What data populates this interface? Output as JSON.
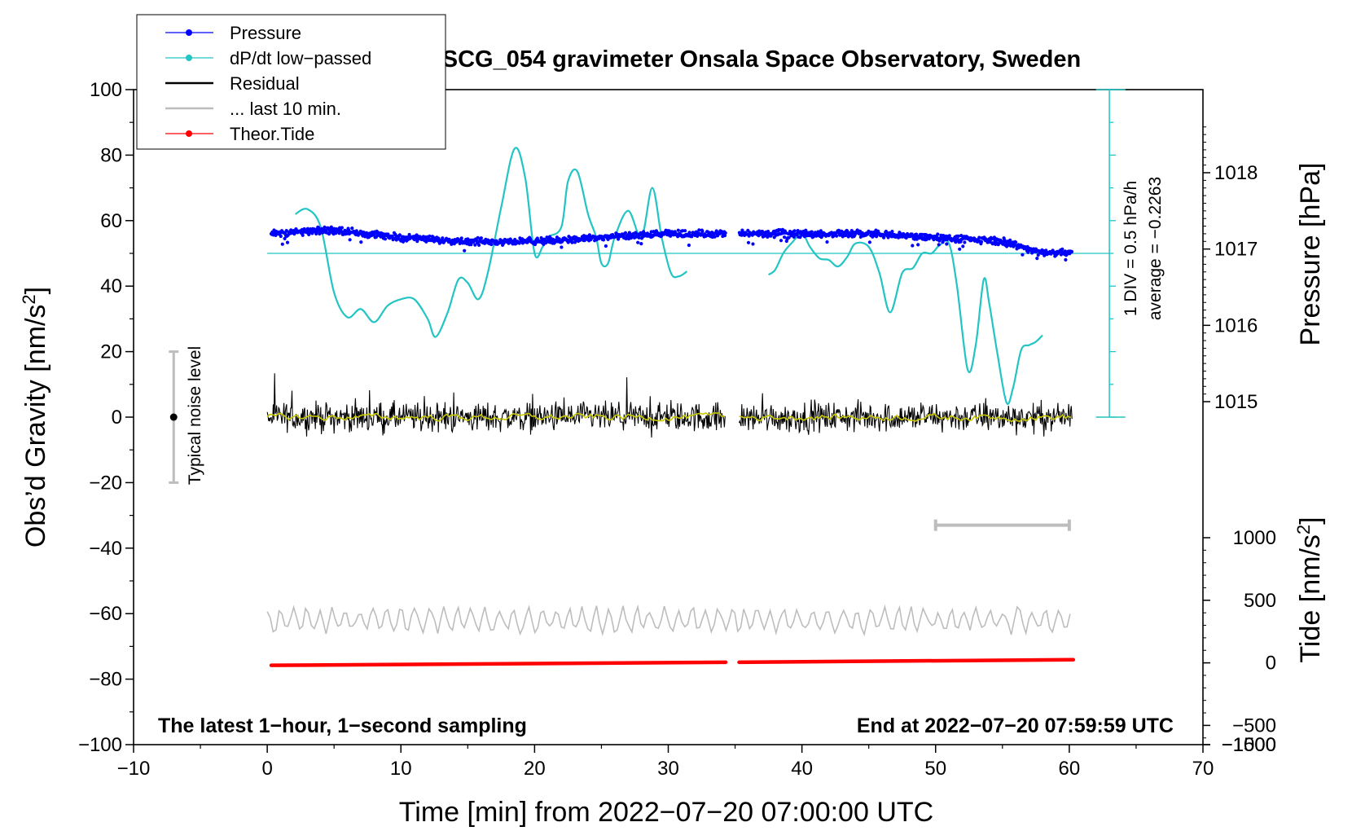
{
  "chart_data": {
    "type": "line",
    "title": "SCG_054 gravimeter Onsala Space Observatory, Sweden",
    "xlabel": "Time [min] from 2022−07−20 07:00:00 UTC",
    "ylabel_left": "Obs'd Gravity [nm/s²]",
    "ylabel_pressure": "Pressure [hPa]",
    "ylabel_tide": "Tide [nm/s²]",
    "xlim": [
      -10,
      70
    ],
    "ylim": [
      -100,
      100
    ],
    "x_ticks": [
      -10,
      0,
      10,
      20,
      30,
      40,
      50,
      60,
      70
    ],
    "x_tick_labels": [
      "−10",
      "0",
      "10",
      "20",
      "30",
      "40",
      "50",
      "60",
      "70"
    ],
    "y_ticks": [
      -100,
      -80,
      -60,
      -40,
      -20,
      0,
      20,
      40,
      60,
      80,
      100
    ],
    "y_tick_labels": [
      "−100",
      "−80",
      "−60",
      "−40",
      "−20",
      "0",
      "20",
      "40",
      "60",
      "80",
      "100"
    ],
    "pressure_ticks": [
      1015,
      1016,
      1017,
      1018
    ],
    "pressure_tick_labels": [
      "1015",
      "1016",
      "1017",
      "1018"
    ],
    "tide_ticks": [
      -1500,
      -1000,
      -500,
      0,
      500,
      1000
    ],
    "tide_tick_labels": [
      "−1500",
      "−1000",
      "−500",
      "0",
      "500",
      "1000"
    ],
    "legend": {
      "position": "top-left",
      "entries": [
        {
          "label": "Pressure",
          "color": "#0000ff",
          "style": "dot-line"
        },
        {
          "label": "dP/dt low−passed",
          "color": "#22c4c4",
          "style": "dot-line"
        },
        {
          "label": "Residual",
          "color": "#000000",
          "style": "line"
        },
        {
          "label": "... last 10 min.",
          "color": "#bdbdbd",
          "style": "line"
        },
        {
          "label": "Theor.Tide",
          "color": "#ff0000",
          "style": "dot-line"
        }
      ]
    },
    "series": [
      {
        "name": "Pressure",
        "axis": "pressure",
        "color": "#0000ff",
        "x": [
          0.3,
          5,
          10,
          15,
          20,
          25,
          30,
          34.3,
          35.3,
          40,
          45,
          50,
          55,
          57,
          58,
          60.2
        ],
        "values": [
          1017.2,
          1017.25,
          1017.15,
          1017.1,
          1017.1,
          1017.15,
          1017.2,
          1017.2,
          1017.2,
          1017.2,
          1017.2,
          1017.15,
          1017.1,
          1017.0,
          1016.95,
          1016.95
        ]
      },
      {
        "name": "dP/dt low-passed",
        "axis": "gravity",
        "color": "#22c4c4",
        "segments": [
          {
            "x": [
              2.1,
              3,
              4,
              5,
              6,
              7,
              8,
              9,
              10,
              11,
              12,
              12.6,
              13.5,
              14.3,
              15,
              15.8,
              16.5,
              17.5,
              18.5,
              19.3,
              20,
              20.6,
              21,
              22,
              22.5,
              23.2,
              24,
              24.6,
              25,
              25.5,
              26,
              27,
              28,
              28.8,
              29.5,
              30.2,
              30.8,
              31.4
            ],
            "values": [
              62,
              63.5,
              58,
              38,
              30.5,
              33,
              29,
              34,
              36,
              36,
              30,
              24.5,
              32,
              42,
              41,
              36,
              44,
              64,
              82,
              73,
              50,
              52,
              55,
              58,
              72,
              75,
              62,
              55,
              47,
              47,
              55,
              63,
              55,
              70,
              55,
              44,
              43,
              44.5
            ]
          },
          {
            "x": [
              37.5,
              38,
              38.6,
              39.2,
              40,
              40.6,
              41.3,
              42,
              42.7,
              43.4,
              44,
              45,
              45.8,
              46.6,
              47.5,
              48.3,
              49,
              49.7,
              50.3,
              51,
              51.6,
              52.4,
              53,
              53.6,
              54,
              54.6,
              55.3,
              55.8,
              56.4,
              57,
              57.5,
              58
            ],
            "values": [
              43.5,
              45,
              50,
              53,
              56,
              52,
              48.5,
              48,
              46,
              49,
              53,
              52,
              44,
              32,
              44,
              45.5,
              50,
              50,
              52.5,
              53,
              40,
              14.5,
              22,
              42,
              35,
              20,
              4.5,
              9,
              20.5,
              22,
              23,
              25
            ]
          }
        ],
        "average": -0.2263,
        "scale": "1 DIV = 0.5 hPa/h"
      },
      {
        "name": "Residual",
        "axis": "gravity",
        "color": "#000000",
        "segments": [
          {
            "x": [
              0,
              34.3
            ],
            "level": 0,
            "noise": 4
          },
          {
            "x": [
              35.3,
              60.2
            ],
            "level": 0,
            "noise": 4
          }
        ]
      },
      {
        "name": "... last 10 min.",
        "axis": "gravity",
        "color": "#bdbdbd",
        "x": [
          0,
          60.2
        ],
        "level": -62,
        "noise": 3.5
      },
      {
        "name": "Theor.Tide",
        "axis": "tide",
        "color": "#ff0000",
        "segments": [
          {
            "x": [
              0.3,
              34.3
            ],
            "values": [
              -20,
              5
            ]
          },
          {
            "x": [
              35.3,
              60.3
            ],
            "values": [
              5,
              25
            ]
          }
        ]
      }
    ],
    "annotations": {
      "noise_label": "Typical noise level",
      "noise_center": 0,
      "noise_range": [
        -20,
        20
      ],
      "scale_label": "1 DIV = 0.5 hPa/h",
      "average_label": "average = −0.2263",
      "footer_left": "The latest 1−hour, 1−second sampling",
      "footer_right": "End at 2022−07−20 07:59:59 UTC",
      "last10_bar_x": [
        50,
        60
      ],
      "last10_bar_y": -33
    },
    "colors": {
      "pressure": "#0000ff",
      "dpdt": "#22c4c4",
      "residual": "#000000",
      "residual_smooth": "#c8c800",
      "last10": "#bdbdbd",
      "tide": "#ff0000"
    }
  }
}
